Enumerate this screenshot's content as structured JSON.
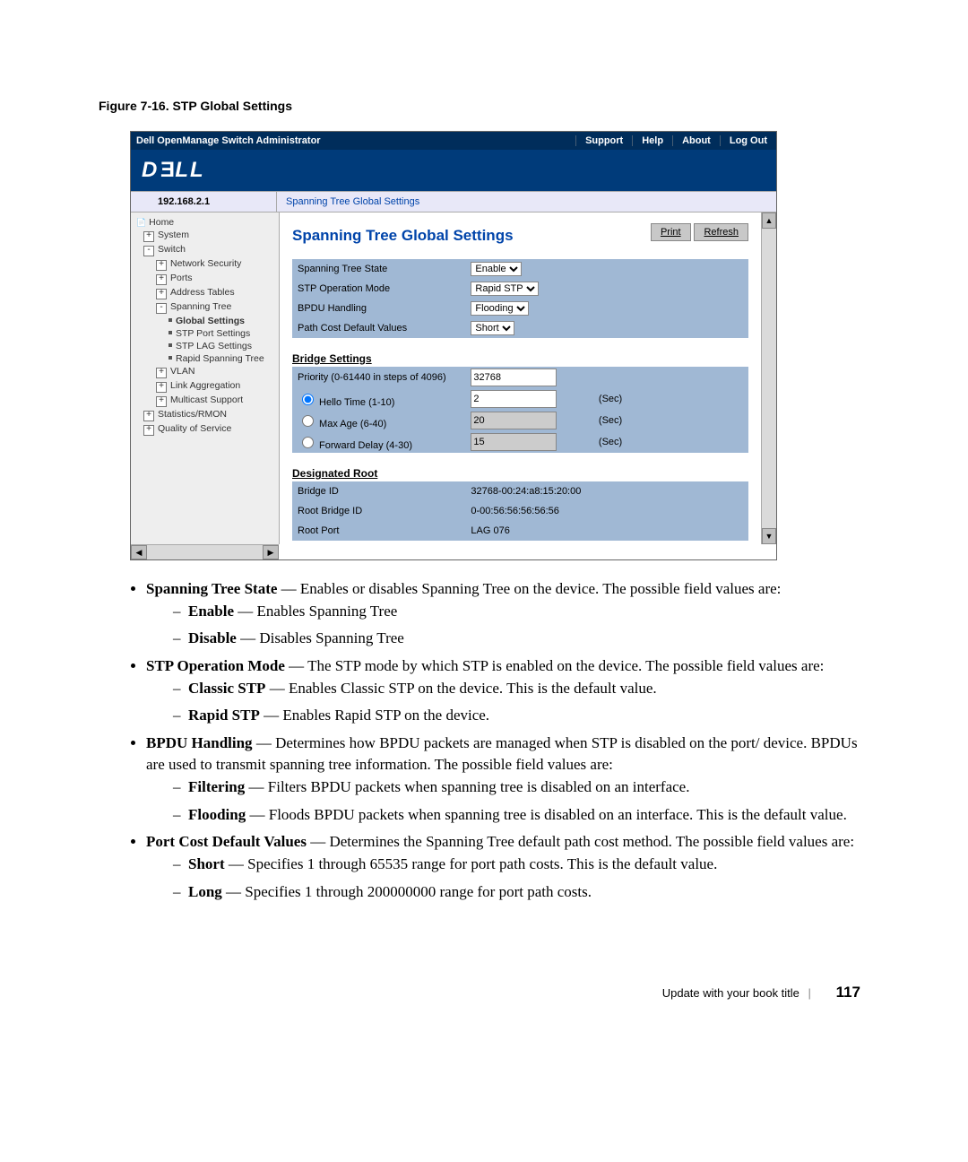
{
  "figure_caption": "Figure 7-16.    STP Global Settings",
  "screenshot": {
    "topbar": {
      "title": "Dell OpenManage Switch Administrator",
      "links": [
        "Support",
        "Help",
        "About",
        "Log Out"
      ]
    },
    "logo_text": "DELL",
    "ip": "192.168.2.1",
    "breadcrumb": "Spanning Tree Global Settings",
    "tree": [
      {
        "lvl": 0,
        "exp": "",
        "bold": false,
        "label": "Home",
        "icon": "📄"
      },
      {
        "lvl": 1,
        "exp": "+",
        "bold": false,
        "label": "System"
      },
      {
        "lvl": 1,
        "exp": "-",
        "bold": false,
        "label": "Switch"
      },
      {
        "lvl": 2,
        "exp": "+",
        "bold": false,
        "label": "Network Security"
      },
      {
        "lvl": 2,
        "exp": "+",
        "bold": false,
        "label": "Ports"
      },
      {
        "lvl": 2,
        "exp": "+",
        "bold": false,
        "label": "Address Tables"
      },
      {
        "lvl": 2,
        "exp": "-",
        "bold": false,
        "label": "Spanning Tree"
      },
      {
        "lvl": 3,
        "exp": "",
        "bold": true,
        "label": "Global Settings"
      },
      {
        "lvl": 3,
        "exp": "",
        "bold": false,
        "label": "STP Port Settings"
      },
      {
        "lvl": 3,
        "exp": "",
        "bold": false,
        "label": "STP LAG Settings"
      },
      {
        "lvl": 3,
        "exp": "",
        "bold": false,
        "label": "Rapid Spanning Tree"
      },
      {
        "lvl": 2,
        "exp": "+",
        "bold": false,
        "label": "VLAN"
      },
      {
        "lvl": 2,
        "exp": "+",
        "bold": false,
        "label": "Link Aggregation"
      },
      {
        "lvl": 2,
        "exp": "+",
        "bold": false,
        "label": "Multicast Support"
      },
      {
        "lvl": 1,
        "exp": "+",
        "bold": false,
        "label": "Statistics/RMON"
      },
      {
        "lvl": 1,
        "exp": "+",
        "bold": false,
        "label": "Quality of Service"
      }
    ],
    "content": {
      "title": "Spanning Tree Global Settings",
      "buttons": {
        "print": "Print",
        "refresh": "Refresh"
      },
      "settings_rows": [
        {
          "label": "Spanning Tree State",
          "type": "select",
          "value": "Enable"
        },
        {
          "label": "STP Operation Mode",
          "type": "select",
          "value": "Rapid STP"
        },
        {
          "label": "BPDU Handling",
          "type": "select",
          "value": "Flooding"
        },
        {
          "label": "Path Cost Default Values",
          "type": "select",
          "value": "Short"
        }
      ],
      "bridge_head": "Bridge Settings",
      "bridge_rows": [
        {
          "radio": false,
          "label": "Priority  (0-61440 in steps of 4096)",
          "value": "32768",
          "unit": "",
          "readonly": false
        },
        {
          "radio": true,
          "checked": true,
          "label": "Hello Time  (1-10)",
          "value": "2",
          "unit": "(Sec)",
          "readonly": false
        },
        {
          "radio": true,
          "checked": false,
          "label": "Max Age  (6-40)",
          "value": "20",
          "unit": "(Sec)",
          "readonly": true
        },
        {
          "radio": true,
          "checked": false,
          "label": "Forward Delay  (4-30)",
          "value": "15",
          "unit": "(Sec)",
          "readonly": true
        }
      ],
      "root_head": "Designated Root",
      "root_rows": [
        {
          "label": "Bridge ID",
          "value": "32768-00:24:a8:15:20:00"
        },
        {
          "label": "Root Bridge ID",
          "value": "0-00:56:56:56:56:56"
        },
        {
          "label": "Root Port",
          "value": "LAG 076"
        }
      ]
    }
  },
  "article": {
    "items": [
      {
        "term": "Spanning Tree State",
        "desc": " — Enables or disables Spanning Tree on the device. The possible field values are:",
        "sub": [
          {
            "term": "Enable",
            "desc": " — Enables Spanning Tree"
          },
          {
            "term": "Disable",
            "desc": " — Disables Spanning Tree"
          }
        ]
      },
      {
        "term": "STP Operation Mode",
        "desc": " — The STP mode by which STP is enabled on the device. The possible field values are:",
        "sub": [
          {
            "term": "Classic STP",
            "desc": " — Enables Classic STP on the device. This is the default value."
          },
          {
            "term": "Rapid STP",
            "desc": " — Enables Rapid STP on the device."
          }
        ]
      },
      {
        "term": "BPDU Handling",
        "desc": " — Determines how BPDU packets are managed when STP is disabled on the port/ device. BPDUs are used to transmit spanning tree information. The possible field values are:",
        "sub": [
          {
            "term": "Filtering",
            "desc": " — Filters BPDU packets when spanning tree is disabled on an interface."
          },
          {
            "term": "Flooding",
            "desc": " — Floods BPDU packets when spanning tree is disabled on an interface. This is the default value."
          }
        ]
      },
      {
        "term": "Port Cost Default Values",
        "desc": " — Determines the Spanning Tree default path cost method. The possible field values are:",
        "sub": [
          {
            "term": "Short",
            "desc": " — Specifies 1 through 65535 range for port path costs. This is the default value."
          },
          {
            "term": "Long",
            "desc": " — Specifies 1 through 200000000 range for port path costs."
          }
        ]
      }
    ]
  },
  "footer": {
    "text": "Update with your book title",
    "page": "117"
  }
}
